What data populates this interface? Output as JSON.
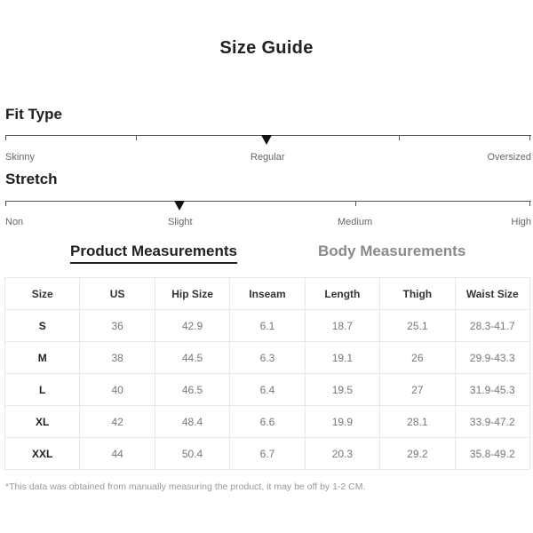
{
  "title": "Size Guide",
  "fit_type": {
    "heading": "Fit Type",
    "labels": [
      "Skinny",
      "Regular",
      "Oversized"
    ],
    "selected": "Regular"
  },
  "stretch": {
    "heading": "Stretch",
    "labels": [
      "Non",
      "Slight",
      "Medium",
      "High"
    ],
    "selected": "Slight"
  },
  "tabs": {
    "product": "Product Measurements",
    "body": "Body Measurements",
    "active": "product"
  },
  "table": {
    "headers": [
      "Size",
      "US",
      "Hip Size",
      "Inseam",
      "Length",
      "Thigh",
      "Waist Size"
    ],
    "rows": [
      [
        "S",
        "36",
        "42.9",
        "6.1",
        "18.7",
        "25.1",
        "28.3-41.7"
      ],
      [
        "M",
        "38",
        "44.5",
        "6.3",
        "19.1",
        "26",
        "29.9-43.3"
      ],
      [
        "L",
        "40",
        "46.5",
        "6.4",
        "19.5",
        "27",
        "31.9-45.3"
      ],
      [
        "XL",
        "42",
        "48.4",
        "6.6",
        "19.9",
        "28.1",
        "33.9-47.2"
      ],
      [
        "XXL",
        "44",
        "50.4",
        "6.7",
        "20.3",
        "29.2",
        "35.8-49.2"
      ]
    ]
  },
  "footnote": "*This data was obtained from manually measuring the product, it may be off by 1-2 CM."
}
